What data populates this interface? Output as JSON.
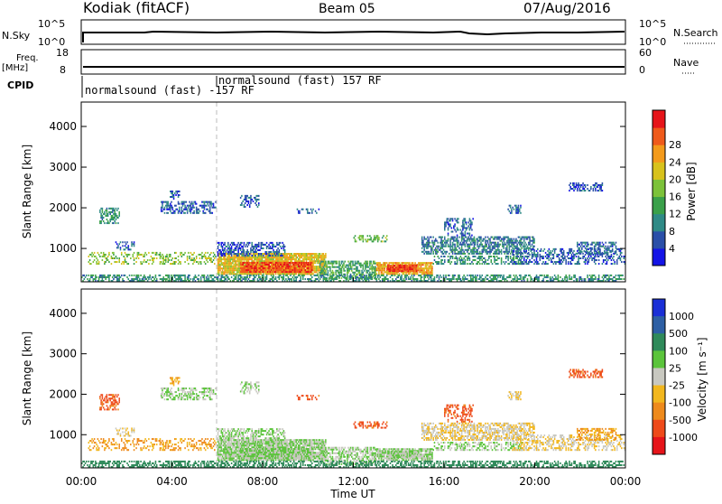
{
  "header": {
    "station": "Kodiak (fitACF)",
    "beam": "Beam 05",
    "date": "07/Aug/2016"
  },
  "panels": {
    "nsky_label": "N.Sky",
    "nsearch_label": "N.Search",
    "nsky_ticks": [
      "10^5",
      "10^0"
    ],
    "nsearch_ticks": [
      "10^5",
      "10^0"
    ],
    "freq_label_1": "Freq.",
    "freq_label_2": "[MHz]",
    "freq_ticks": [
      "18",
      "8"
    ],
    "nave_label": "Nave",
    "nave_ticks": [
      "60",
      "0"
    ],
    "cpid_label": "CPID",
    "cpid_mode_1": "normalsound (fast) -157 RF",
    "cpid_mode_2": "normalsound (fast) 157 RF"
  },
  "chart_data": [
    {
      "type": "heatmap",
      "name": "power",
      "ylabel": "Slant Range [km]",
      "xlabel": "Time UT",
      "xticks": [
        "00:00",
        "04:00",
        "08:00",
        "12:00",
        "16:00",
        "20:00",
        "00:00"
      ],
      "yticks": [
        "1000",
        "2000",
        "3000",
        "4000"
      ],
      "ylim": [
        180,
        4600
      ],
      "xlim_hours": [
        0,
        24
      ],
      "colorbar_label": "Power [dB]",
      "colorbar_ticks": [
        "4",
        "8",
        "12",
        "16",
        "20",
        "24",
        "28"
      ],
      "colorbar_colors": [
        "#1414e6",
        "#2a4fa8",
        "#2f8a86",
        "#3aa04a",
        "#7cc23a",
        "#d8c21c",
        "#f39a1b",
        "#ef5a1b",
        "#e6141a"
      ],
      "cpid_change_hour": 6.0
    },
    {
      "type": "heatmap",
      "name": "velocity",
      "ylabel": "Slant Range [km]",
      "xlabel": "Time UT",
      "xticks": [
        "00:00",
        "04:00",
        "08:00",
        "12:00",
        "16:00",
        "20:00",
        "00:00"
      ],
      "yticks": [
        "1000",
        "2000",
        "3000",
        "4000"
      ],
      "ylim": [
        180,
        4600
      ],
      "xlim_hours": [
        0,
        24
      ],
      "colorbar_label": "Velocity [m s⁻¹]",
      "colorbar_ticks": [
        "1000",
        "500",
        "100",
        "25",
        "-25",
        "-100",
        "-500",
        "-1000"
      ],
      "colorbar_colors": [
        "#1a2fd6",
        "#2d5fa4",
        "#2f8a5a",
        "#5bc43b",
        "#c8c8c0",
        "#f2b71e",
        "#ee8a1c",
        "#ee4a1a",
        "#e6141a"
      ],
      "cpid_change_hour": 6.0
    }
  ],
  "scatter_regions": [
    {
      "t0": 0.3,
      "t1": 5.9,
      "r0": 600,
      "r1": 900,
      "p": 16,
      "v": -100,
      "dens": 0.35
    },
    {
      "t0": 0.8,
      "t1": 1.7,
      "r0": 1600,
      "r1": 2000,
      "p": 10,
      "v": -500,
      "dens": 0.45
    },
    {
      "t0": 3.5,
      "t1": 5.9,
      "r0": 1850,
      "r1": 2150,
      "p": 6,
      "v": 25,
      "dens": 0.5
    },
    {
      "t0": 3.9,
      "t1": 4.3,
      "r0": 2200,
      "r1": 2400,
      "p": 5,
      "v": -100,
      "dens": 0.4
    },
    {
      "t0": 1.5,
      "t1": 2.3,
      "r0": 950,
      "r1": 1150,
      "p": 5,
      "v": -25,
      "dens": 0.4
    },
    {
      "t0": 6.0,
      "t1": 10.8,
      "r0": 350,
      "r1": 850,
      "p": 20,
      "v": 25,
      "dens": 0.9
    },
    {
      "t0": 7.0,
      "t1": 10.2,
      "r0": 400,
      "r1": 650,
      "p": 27,
      "v": 25,
      "dens": 0.9
    },
    {
      "t0": 6.0,
      "t1": 9.0,
      "r0": 800,
      "r1": 1150,
      "p": 5,
      "v": 25,
      "dens": 0.5
    },
    {
      "t0": 10.5,
      "t1": 13.0,
      "r0": 250,
      "r1": 700,
      "p": 12,
      "v": 25,
      "dens": 0.55
    },
    {
      "t0": 13.0,
      "t1": 15.5,
      "r0": 350,
      "r1": 650,
      "p": 22,
      "v": 25,
      "dens": 0.85
    },
    {
      "t0": 13.5,
      "t1": 14.8,
      "r0": 420,
      "r1": 580,
      "p": 28,
      "v": 25,
      "dens": 0.9
    },
    {
      "t0": 15.0,
      "t1": 20.0,
      "r0": 850,
      "r1": 1300,
      "p": 8,
      "v": -25,
      "dens": 0.55
    },
    {
      "t0": 15.5,
      "t1": 19.5,
      "r0": 600,
      "r1": 800,
      "p": 10,
      "v": 25,
      "dens": 0.45
    },
    {
      "t0": 16.0,
      "t1": 17.3,
      "r0": 1300,
      "r1": 1750,
      "p": 6,
      "v": -500,
      "dens": 0.4
    },
    {
      "t0": 19.0,
      "t1": 24.0,
      "r0": 600,
      "r1": 1000,
      "p": 6,
      "v": -25,
      "dens": 0.4
    },
    {
      "t0": 21.8,
      "t1": 23.6,
      "r0": 850,
      "r1": 1150,
      "p": 7,
      "v": -100,
      "dens": 0.45
    },
    {
      "t0": 7.0,
      "t1": 7.8,
      "r0": 2000,
      "r1": 2300,
      "p": 6,
      "v": 25,
      "dens": 0.4
    },
    {
      "t0": 12.0,
      "t1": 13.5,
      "r0": 1150,
      "r1": 1300,
      "p": 14,
      "v": -500,
      "dens": 0.4
    },
    {
      "t0": 21.5,
      "t1": 23.0,
      "r0": 2400,
      "r1": 2600,
      "p": 5,
      "v": -500,
      "dens": 0.4
    },
    {
      "t0": 0.0,
      "t1": 24.0,
      "r0": 180,
      "r1": 330,
      "p": 10,
      "v": 100,
      "dens": 0.5
    },
    {
      "t0": 9.5,
      "t1": 10.5,
      "r0": 1850,
      "r1": 1950,
      "p": 6,
      "v": -500,
      "dens": 0.35
    },
    {
      "t0": 18.8,
      "t1": 19.4,
      "r0": 1850,
      "r1": 2050,
      "p": 6,
      "v": -25,
      "dens": 0.4
    }
  ]
}
